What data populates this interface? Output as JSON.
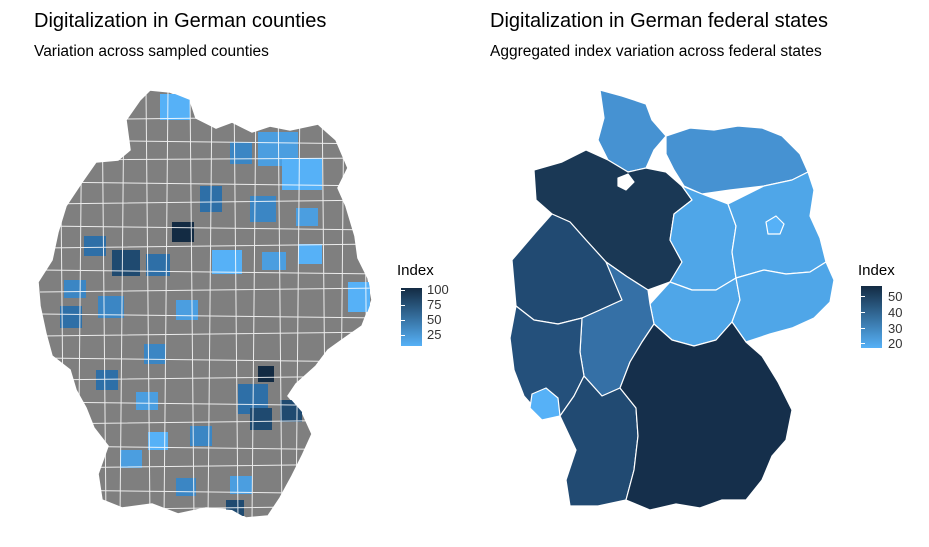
{
  "left": {
    "title": "Digitalization in German counties",
    "subtitle": "Variation across sampled counties",
    "legend": {
      "title": "Index",
      "ticks": [
        "100",
        "75",
        "50",
        "25"
      ],
      "gradient_top": "#132b43",
      "gradient_bottom": "#56b1f7",
      "na_color": "#7f7f7f"
    }
  },
  "right": {
    "title": "Digitalization in German federal states",
    "subtitle": "Aggregated index variation across federal states",
    "legend": {
      "title": "Index",
      "ticks": [
        "50",
        "40",
        "30",
        "20"
      ],
      "gradient_top": "#132b43",
      "gradient_bottom": "#56b1f7"
    }
  }
}
